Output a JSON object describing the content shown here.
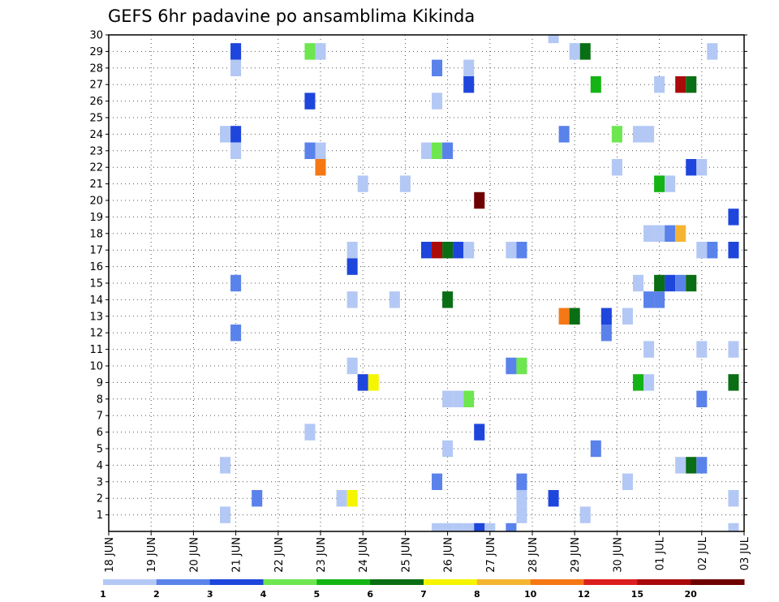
{
  "chart_data": {
    "type": "heatmap",
    "title": "GEFS 6hr padavine po ansamblima Kikinda",
    "x_ticks": [
      "18 JUN",
      "19 JUN",
      "20 JUN",
      "21 JUN",
      "22 JUN",
      "23 JUN",
      "24 JUN",
      "25 JUN",
      "26 JUN",
      "27 JUN",
      "28 JUN",
      "29 JUN",
      "30 JUN",
      "01 JUL",
      "02 JUL",
      "03 JUL"
    ],
    "y_ticks": [
      "1",
      "2",
      "3",
      "4",
      "5",
      "6",
      "7",
      "8",
      "9",
      "10",
      "11",
      "12",
      "13",
      "14",
      "15",
      "16",
      "17",
      "18",
      "19",
      "20",
      "21",
      "22",
      "23",
      "24",
      "25",
      "26",
      "27",
      "28",
      "29",
      "30"
    ],
    "ylim": [
      0,
      30
    ],
    "grid": true,
    "colorbar": {
      "colors": [
        "#b4c8f5",
        "#5a82eb",
        "#1e46dc",
        "#6ee650",
        "#14b414",
        "#0a6e14",
        "#f5f500",
        "#f5b432",
        "#f57814",
        "#dc1e1e",
        "#aa0a0a",
        "#6e0000"
      ],
      "labels": [
        "1",
        "2",
        "3",
        "4",
        "5",
        "6",
        "7",
        "8",
        "10",
        "12",
        "15",
        "20"
      ]
    },
    "cells": [
      {
        "day": "21 JUN",
        "hour": 0,
        "m": 29,
        "c": 2
      },
      {
        "day": "21 JUN",
        "hour": 0,
        "m": 28,
        "c": 0
      },
      {
        "day": "21 JUN",
        "hour": 0,
        "m": 24,
        "c": 2
      },
      {
        "day": "21 JUN",
        "hour": 0,
        "m": 23,
        "c": 0
      },
      {
        "day": "21 JUN",
        "hour": 0,
        "m": 15,
        "c": 1
      },
      {
        "day": "21 JUN",
        "hour": 0,
        "m": 12,
        "c": 1
      },
      {
        "day": "20 JUN",
        "hour": 18,
        "m": 24,
        "c": 0
      },
      {
        "day": "20 JUN",
        "hour": 18,
        "m": 4,
        "c": 0
      },
      {
        "day": "20 JUN",
        "hour": 18,
        "m": 1,
        "c": 0
      },
      {
        "day": "21 JUN",
        "hour": 12,
        "m": 2,
        "c": 1
      },
      {
        "day": "22 JUN",
        "hour": 18,
        "m": 29,
        "c": 3
      },
      {
        "day": "23 JUN",
        "hour": 0,
        "m": 29,
        "c": 0
      },
      {
        "day": "22 JUN",
        "hour": 18,
        "m": 26,
        "c": 2
      },
      {
        "day": "22 JUN",
        "hour": 18,
        "m": 23,
        "c": 1
      },
      {
        "day": "23 JUN",
        "hour": 0,
        "m": 23,
        "c": 0
      },
      {
        "day": "23 JUN",
        "hour": 0,
        "m": 22,
        "c": 8
      },
      {
        "day": "22 JUN",
        "hour": 18,
        "m": 6,
        "c": 0
      },
      {
        "day": "23 JUN",
        "hour": 12,
        "m": 2,
        "c": 0
      },
      {
        "day": "23 JUN",
        "hour": 18,
        "m": 2,
        "c": 6
      },
      {
        "day": "23 JUN",
        "hour": 18,
        "m": 17,
        "c": 0
      },
      {
        "day": "23 JUN",
        "hour": 18,
        "m": 16,
        "c": 2
      },
      {
        "day": "23 JUN",
        "hour": 18,
        "m": 14,
        "c": 0
      },
      {
        "day": "23 JUN",
        "hour": 18,
        "m": 10,
        "c": 0
      },
      {
        "day": "24 JUN",
        "hour": 0,
        "m": 9,
        "c": 2
      },
      {
        "day": "24 JUN",
        "hour": 6,
        "m": 9,
        "c": 6
      },
      {
        "day": "24 JUN",
        "hour": 0,
        "m": 21,
        "c": 0
      },
      {
        "day": "24 JUN",
        "hour": 18,
        "m": 14,
        "c": 0
      },
      {
        "day": "25 JUN",
        "hour": 0,
        "m": 21,
        "c": 0
      },
      {
        "day": "25 JUN",
        "hour": 12,
        "m": 23,
        "c": 0
      },
      {
        "day": "25 JUN",
        "hour": 18,
        "m": 23,
        "c": 3
      },
      {
        "day": "26 JUN",
        "hour": 0,
        "m": 23,
        "c": 1
      },
      {
        "day": "25 JUN",
        "hour": 12,
        "m": 17,
        "c": 2
      },
      {
        "day": "25 JUN",
        "hour": 18,
        "m": 17,
        "c": 10
      },
      {
        "day": "26 JUN",
        "hour": 0,
        "m": 17,
        "c": 5
      },
      {
        "day": "26 JUN",
        "hour": 6,
        "m": 17,
        "c": 2
      },
      {
        "day": "26 JUN",
        "hour": 12,
        "m": 17,
        "c": 0
      },
      {
        "day": "25 JUN",
        "hour": 18,
        "m": 28,
        "c": 1
      },
      {
        "day": "25 JUN",
        "hour": 18,
        "m": 26,
        "c": 0
      },
      {
        "day": "25 JUN",
        "hour": 18,
        "m": 3,
        "c": 1
      },
      {
        "day": "26 JUN",
        "hour": 0,
        "m": 14,
        "c": 5
      },
      {
        "day": "26 JUN",
        "hour": 0,
        "m": 8,
        "c": 0
      },
      {
        "day": "26 JUN",
        "hour": 6,
        "m": 8,
        "c": 0
      },
      {
        "day": "26 JUN",
        "hour": 12,
        "m": 8,
        "c": 3
      },
      {
        "day": "26 JUN",
        "hour": 0,
        "m": 5,
        "c": 0
      },
      {
        "day": "26 JUN",
        "hour": 12,
        "m": 28,
        "c": 0
      },
      {
        "day": "26 JUN",
        "hour": 12,
        "m": 27,
        "c": 2
      },
      {
        "day": "26 JUN",
        "hour": 18,
        "m": 20,
        "c": 11
      },
      {
        "day": "26 JUN",
        "hour": 18,
        "m": 6,
        "c": 2
      },
      {
        "day": "27 JUN",
        "hour": 12,
        "m": 17,
        "c": 0
      },
      {
        "day": "27 JUN",
        "hour": 18,
        "m": 17,
        "c": 1
      },
      {
        "day": "27 JUN",
        "hour": 12,
        "m": 10,
        "c": 1
      },
      {
        "day": "27 JUN",
        "hour": 18,
        "m": 10,
        "c": 3
      },
      {
        "day": "27 JUN",
        "hour": 18,
        "m": 3,
        "c": 1
      },
      {
        "day": "27 JUN",
        "hour": 18,
        "m": 2,
        "c": 0
      },
      {
        "day": "27 JUN",
        "hour": 18,
        "m": 1,
        "c": 0
      },
      {
        "day": "28 JUN",
        "hour": 12,
        "m": 2,
        "c": 2
      },
      {
        "day": "28 JUN",
        "hour": 12,
        "m": 30,
        "c": 0
      },
      {
        "day": "28 JUN",
        "hour": 18,
        "m": 24,
        "c": 1
      },
      {
        "day": "28 JUN",
        "hour": 18,
        "m": 13,
        "c": 8
      },
      {
        "day": "29 JUN",
        "hour": 0,
        "m": 13,
        "c": 5
      },
      {
        "day": "29 JUN",
        "hour": 0,
        "m": 29,
        "c": 0
      },
      {
        "day": "29 JUN",
        "hour": 6,
        "m": 29,
        "c": 5
      },
      {
        "day": "29 JUN",
        "hour": 6,
        "m": 1,
        "c": 0
      },
      {
        "day": "29 JUN",
        "hour": 12,
        "m": 27,
        "c": 4
      },
      {
        "day": "29 JUN",
        "hour": 12,
        "m": 5,
        "c": 1
      },
      {
        "day": "29 JUN",
        "hour": 18,
        "m": 13,
        "c": 2
      },
      {
        "day": "29 JUN",
        "hour": 18,
        "m": 12,
        "c": 1
      },
      {
        "day": "30 JUN",
        "hour": 0,
        "m": 24,
        "c": 3
      },
      {
        "day": "30 JUN",
        "hour": 0,
        "m": 22,
        "c": 0
      },
      {
        "day": "30 JUN",
        "hour": 6,
        "m": 13,
        "c": 0
      },
      {
        "day": "30 JUN",
        "hour": 6,
        "m": 3,
        "c": 0
      },
      {
        "day": "30 JUN",
        "hour": 12,
        "m": 24,
        "c": 0
      },
      {
        "day": "30 JUN",
        "hour": 18,
        "m": 24,
        "c": 0
      },
      {
        "day": "30 JUN",
        "hour": 12,
        "m": 15,
        "c": 0
      },
      {
        "day": "30 JUN",
        "hour": 18,
        "m": 18,
        "c": 0
      },
      {
        "day": "30 JUN",
        "hour": 18,
        "m": 14,
        "c": 1
      },
      {
        "day": "30 JUN",
        "hour": 18,
        "m": 11,
        "c": 0
      },
      {
        "day": "30 JUN",
        "hour": 12,
        "m": 9,
        "c": 4
      },
      {
        "day": "30 JUN",
        "hour": 18,
        "m": 9,
        "c": 0
      },
      {
        "day": "01 JUL",
        "hour": 0,
        "m": 27,
        "c": 0
      },
      {
        "day": "01 JUL",
        "hour": 0,
        "m": 21,
        "c": 4
      },
      {
        "day": "01 JUL",
        "hour": 6,
        "m": 21,
        "c": 0
      },
      {
        "day": "01 JUL",
        "hour": 0,
        "m": 18,
        "c": 0
      },
      {
        "day": "01 JUL",
        "hour": 6,
        "m": 18,
        "c": 1
      },
      {
        "day": "01 JUL",
        "hour": 12,
        "m": 18,
        "c": 7
      },
      {
        "day": "01 JUL",
        "hour": 0,
        "m": 15,
        "c": 5
      },
      {
        "day": "01 JUL",
        "hour": 6,
        "m": 15,
        "c": 2
      },
      {
        "day": "01 JUL",
        "hour": 12,
        "m": 15,
        "c": 1
      },
      {
        "day": "01 JUL",
        "hour": 18,
        "m": 15,
        "c": 5
      },
      {
        "day": "01 JUL",
        "hour": 0,
        "m": 14,
        "c": 1
      },
      {
        "day": "01 JUL",
        "hour": 12,
        "m": 27,
        "c": 10
      },
      {
        "day": "01 JUL",
        "hour": 18,
        "m": 27,
        "c": 5
      },
      {
        "day": "01 JUL",
        "hour": 12,
        "m": 4,
        "c": 0
      },
      {
        "day": "01 JUL",
        "hour": 18,
        "m": 4,
        "c": 5
      },
      {
        "day": "02 JUL",
        "hour": 0,
        "m": 4,
        "c": 1
      },
      {
        "day": "01 JUL",
        "hour": 18,
        "m": 22,
        "c": 2
      },
      {
        "day": "02 JUL",
        "hour": 0,
        "m": 22,
        "c": 0
      },
      {
        "day": "02 JUL",
        "hour": 0,
        "m": 17,
        "c": 0
      },
      {
        "day": "02 JUL",
        "hour": 6,
        "m": 17,
        "c": 1
      },
      {
        "day": "02 JUL",
        "hour": 0,
        "m": 11,
        "c": 0
      },
      {
        "day": "02 JUL",
        "hour": 0,
        "m": 8,
        "c": 1
      },
      {
        "day": "02 JUL",
        "hour": 6,
        "m": 29,
        "c": 0
      },
      {
        "day": "02 JUL",
        "hour": 18,
        "m": 19,
        "c": 2
      },
      {
        "day": "02 JUL",
        "hour": 18,
        "m": 17,
        "c": 2
      },
      {
        "day": "02 JUL",
        "hour": 18,
        "m": 11,
        "c": 0
      },
      {
        "day": "02 JUL",
        "hour": 18,
        "m": 9,
        "c": 5
      },
      {
        "day": "02 JUL",
        "hour": 18,
        "m": 2,
        "c": 0
      },
      {
        "day": "25 JUN",
        "hour": 18,
        "m": 0,
        "c": 0
      },
      {
        "day": "26 JUN",
        "hour": 0,
        "m": 0,
        "c": 0
      },
      {
        "day": "26 JUN",
        "hour": 6,
        "m": 0,
        "c": 0
      },
      {
        "day": "26 JUN",
        "hour": 12,
        "m": 0,
        "c": 0
      },
      {
        "day": "26 JUN",
        "hour": 18,
        "m": 0,
        "c": 2
      },
      {
        "day": "27 JUN",
        "hour": 0,
        "m": 0,
        "c": 0
      },
      {
        "day": "27 JUN",
        "hour": 12,
        "m": 0,
        "c": 1
      },
      {
        "day": "02 JUL",
        "hour": 18,
        "m": 0,
        "c": 0
      }
    ]
  }
}
